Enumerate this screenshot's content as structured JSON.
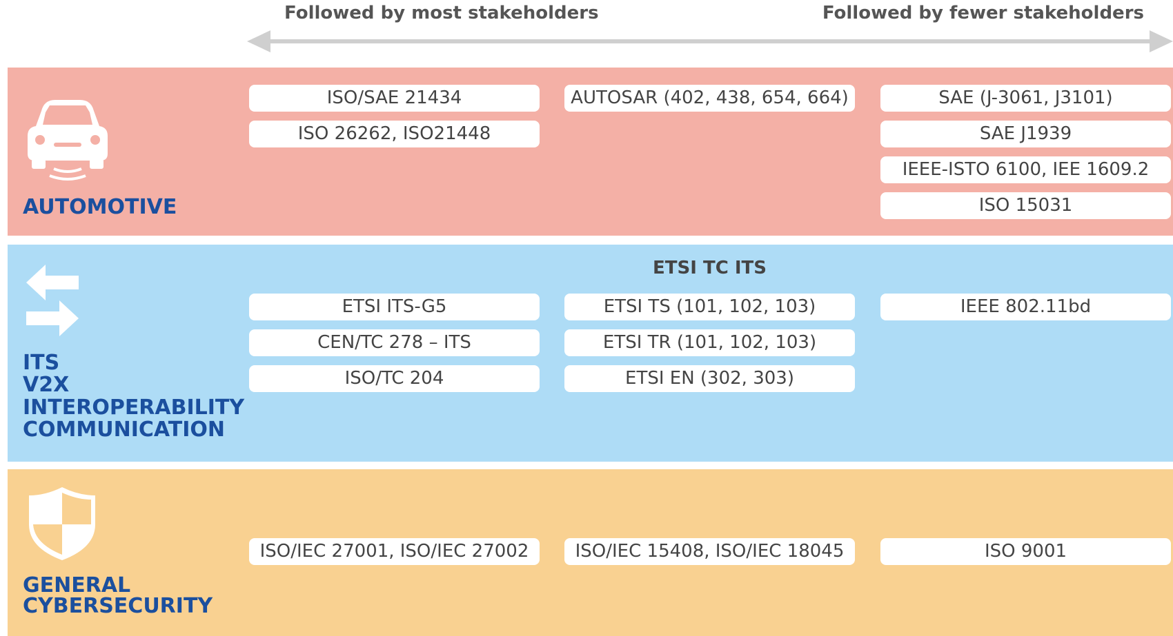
{
  "header": {
    "left": "Followed by most stakeholders",
    "right": "Followed by fewer stakeholders"
  },
  "sections": [
    {
      "label": [
        "AUTOMOTIVE"
      ],
      "columns": [
        [
          "ISO/SAE 21434",
          "ISO 26262, ISO21448"
        ],
        [
          "AUTOSAR (402, 438, 654, 664)"
        ],
        [
          "SAE (J-3061, J3101)",
          "SAE J1939",
          "IEEE-ISTO 6100, IEE 1609.2",
          "ISO 15031"
        ]
      ]
    },
    {
      "label": [
        "ITS",
        "V2X",
        "INTEROPERABILITY",
        "COMMUNICATION"
      ],
      "heading": "ETSI TC ITS",
      "columns": [
        [
          "ETSI ITS-G5",
          "CEN/TC 278 – ITS",
          "ISO/TC 204"
        ],
        [
          "ETSI TS (101, 102, 103)",
          "ETSI TR (101, 102, 103)",
          "ETSI EN (302, 303)"
        ],
        [
          "IEEE 802.11bd"
        ]
      ]
    },
    {
      "label": [
        "GENERAL",
        "CYBERSECURITY"
      ],
      "columns": [
        [
          "ISO/IEC 27001, ISO/IEC 27002"
        ],
        [
          "ISO/IEC 15408, ISO/IEC 18045"
        ],
        [
          "ISO 9001"
        ]
      ]
    }
  ]
}
